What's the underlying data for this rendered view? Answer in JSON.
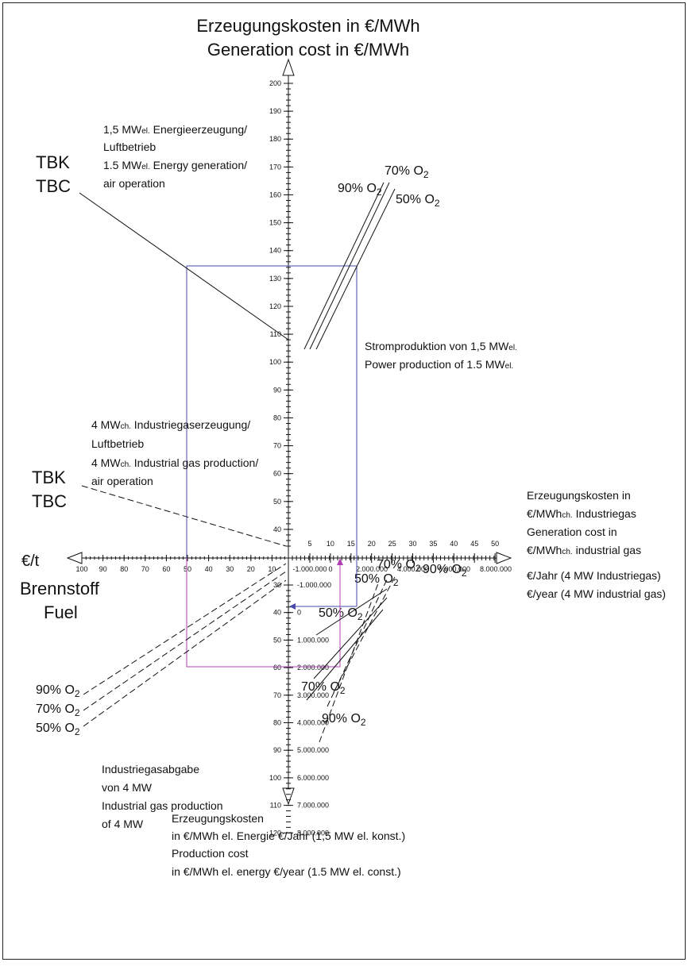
{
  "title": {
    "de": "Erzeugungskosten in €/MWh",
    "en": "Generation cost in €/MWh"
  },
  "power_block": {
    "l1": [
      "1,5 MW",
      "el.",
      " Energieerzeugung/"
    ],
    "l2": "Luftbetrieb",
    "l3": [
      "1.5 MW",
      "el.",
      " Energy generation/"
    ],
    "l4": "air operation"
  },
  "tbk_upper": {
    "de": "TBK",
    "en": "TBC"
  },
  "power_production": {
    "de": [
      "Stromproduktion von 1,5 MW",
      "el."
    ],
    "en": [
      "Power production of 1.5 MW",
      "el."
    ]
  },
  "gas_block": {
    "l1": [
      "4 MW",
      "ch.",
      " Industriegaserzeugung/"
    ],
    "l2": "Luftbetrieb",
    "l3": [
      "4 MW",
      "ch.",
      " Industrial gas production/"
    ],
    "l4": "air operation"
  },
  "tbk_lower": {
    "de": "TBK",
    "en": "TBC"
  },
  "right_axis": {
    "l1": "Erzeugungskosten in",
    "l2": [
      "€/MWh",
      "ch.",
      " Industriegas"
    ],
    "l3": "Generation cost in",
    "l4": [
      "€/MWh",
      "ch.",
      " industrial gas"
    ]
  },
  "right_axis_year": {
    "de": "€/Jahr (4 MW  Industriegas)",
    "en": "€/year (4 MW  industrial gas)"
  },
  "fuel": {
    "unit": "€/t",
    "de": "Brennstoff",
    "en": "Fuel"
  },
  "gas_output": {
    "l1": "Industriegasabgabe",
    "l2": "von 4 MW",
    "l3": "Industrial gas production",
    "l4": "of 4 MW"
  },
  "bottom_axis": {
    "l1": "Erzeugungskosten",
    "l2": "in €/MWh el. Energie €/Jahr (1,5 MW el. konst.)",
    "l3": "Production cost",
    "l4": "in €/MWh el. energy €/year (1.5 MW el. const.)"
  },
  "o2_labels": [
    [
      "90% O",
      "2"
    ],
    [
      "70% O",
      "2"
    ],
    [
      "50% O",
      "2"
    ],
    [
      "70% O",
      "2"
    ],
    [
      "50% O",
      "2"
    ],
    [
      "90% O",
      "2"
    ],
    [
      "50% O",
      "2"
    ],
    [
      "70% O",
      "2"
    ],
    [
      "90% O",
      "2"
    ],
    [
      "90% O",
      "2"
    ],
    [
      "70% O",
      "2"
    ],
    [
      "50% O",
      "2"
    ]
  ],
  "upper_axis_ticks": [
    200,
    190,
    180,
    170,
    160,
    150,
    140,
    130,
    120,
    110,
    100,
    90,
    80,
    70,
    60,
    50,
    40
  ],
  "lower_axis_ticks": [
    30,
    40,
    50,
    60,
    70,
    80,
    90,
    100,
    110,
    120
  ],
  "lower_axis_year_ticks": [
    "-1.000.000",
    "0",
    "1.000.000",
    "2.000.000",
    "3.000.000",
    "4.000.000",
    "5.000.000",
    "6.000.000",
    "7.000.000",
    "8.000.000"
  ],
  "fuel_axis_ticks": [
    100,
    90,
    80,
    70,
    60,
    50,
    40,
    30,
    20,
    10
  ],
  "gas_axis_ticks": [
    5,
    10,
    15,
    20,
    25,
    30,
    35,
    40,
    45,
    50
  ],
  "gas_axis_year_ticks": [
    "-1.000.000",
    "0",
    "2.000.000",
    "4.000.000",
    "6.000.000",
    "8.000.000"
  ]
}
